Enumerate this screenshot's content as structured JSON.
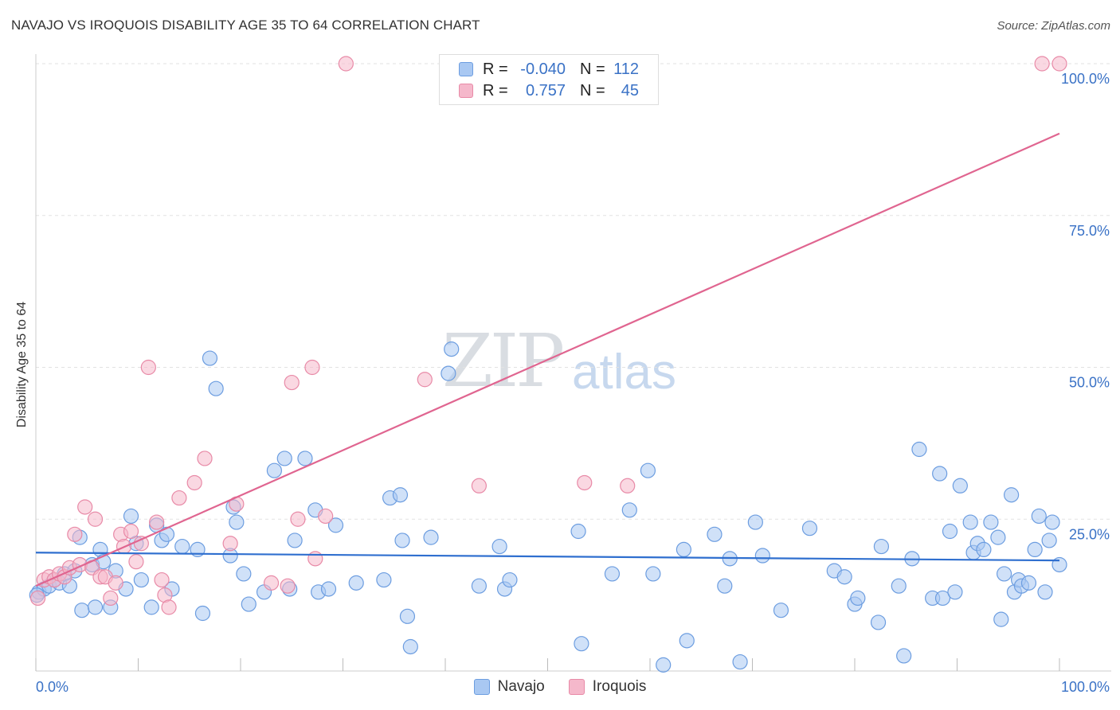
{
  "header": {
    "title": "NAVAJO VS IROQUOIS DISABILITY AGE 35 TO 64 CORRELATION CHART",
    "source": "Source: ZipAtlas.com"
  },
  "watermark": {
    "part1": "ZIP",
    "part2": "atlas"
  },
  "legend": {
    "rows": [
      {
        "r_label": "R =",
        "r_value": "-0.040",
        "n_label": "N =",
        "n_value": "112",
        "color": "#a9c8f2"
      },
      {
        "r_label": "R =",
        "r_value": "0.757",
        "n_label": "N =",
        "n_value": "45",
        "color": "#f5b8cb"
      }
    ]
  },
  "bottom_legend": [
    {
      "label": "Navajo",
      "color": "#a9c8f2"
    },
    {
      "label": "Iroquois",
      "color": "#f5b8cb"
    }
  ],
  "chart_data": {
    "type": "scatter",
    "title": "NAVAJO VS IROQUOIS DISABILITY AGE 35 TO 64 CORRELATION CHART",
    "xlabel": "",
    "ylabel": "Disability Age 35 to 64",
    "xlim": [
      0,
      100
    ],
    "ylim": [
      0,
      100
    ],
    "x_tick_labels": [
      "0.0%",
      "100.0%"
    ],
    "y_tick_labels": [
      "25.0%",
      "50.0%",
      "75.0%",
      "100.0%"
    ],
    "y_ticks": [
      25,
      50,
      75,
      100
    ],
    "grid": true,
    "colors": {
      "navajo_fill": "#a9c8f2",
      "navajo_stroke": "#6c9de0",
      "navajo_line": "#2f6fcf",
      "iroquois_fill": "#f5b8cb",
      "iroquois_stroke": "#e88aa7",
      "iroquois_line": "#e06590",
      "tick_label": "#3a72c6"
    },
    "series": [
      {
        "name": "Navajo",
        "trendline": {
          "x": [
            0,
            100
          ],
          "y": [
            19.5,
            18.2
          ]
        },
        "points": [
          [
            0.3,
            13.0
          ],
          [
            0.8,
            13.5
          ],
          [
            1.3,
            14.0
          ],
          [
            1.8,
            15.0
          ],
          [
            2.3,
            14.5
          ],
          [
            2.8,
            16.0
          ],
          [
            3.3,
            14.0
          ],
          [
            3.8,
            16.5
          ],
          [
            4.3,
            22.0
          ],
          [
            4.5,
            10.0
          ],
          [
            5.5,
            17.5
          ],
          [
            5.8,
            10.5
          ],
          [
            6.3,
            20.0
          ],
          [
            6.6,
            18.0
          ],
          [
            7.3,
            10.5
          ],
          [
            7.8,
            16.5
          ],
          [
            8.8,
            13.5
          ],
          [
            9.3,
            25.5
          ],
          [
            9.8,
            21.0
          ],
          [
            10.3,
            15.0
          ],
          [
            11.3,
            10.5
          ],
          [
            11.8,
            24.0
          ],
          [
            12.3,
            21.5
          ],
          [
            12.8,
            22.5
          ],
          [
            13.3,
            13.5
          ],
          [
            14.3,
            20.5
          ],
          [
            15.8,
            20.0
          ],
          [
            16.3,
            9.5
          ],
          [
            17.0,
            51.5
          ],
          [
            17.6,
            46.5
          ],
          [
            19.0,
            19.0
          ],
          [
            19.3,
            27.0
          ],
          [
            19.6,
            24.5
          ],
          [
            20.3,
            16.0
          ],
          [
            20.8,
            11.0
          ],
          [
            22.3,
            13.0
          ],
          [
            23.3,
            33.0
          ],
          [
            24.3,
            35.0
          ],
          [
            24.8,
            13.5
          ],
          [
            25.3,
            21.5
          ],
          [
            26.3,
            35.0
          ],
          [
            27.3,
            26.5
          ],
          [
            27.6,
            13.0
          ],
          [
            28.6,
            13.5
          ],
          [
            29.3,
            24.0
          ],
          [
            31.3,
            14.5
          ],
          [
            34.0,
            15.0
          ],
          [
            34.6,
            28.5
          ],
          [
            35.6,
            29.0
          ],
          [
            35.8,
            21.5
          ],
          [
            36.3,
            9.0
          ],
          [
            36.6,
            4.0
          ],
          [
            38.6,
            22.0
          ],
          [
            40.3,
            49.0
          ],
          [
            40.6,
            53.0
          ],
          [
            43.3,
            14.0
          ],
          [
            45.3,
            20.5
          ],
          [
            45.8,
            13.5
          ],
          [
            46.3,
            15.0
          ],
          [
            53.0,
            23.0
          ],
          [
            53.3,
            4.5
          ],
          [
            56.3,
            16.0
          ],
          [
            58.0,
            26.5
          ],
          [
            59.8,
            33.0
          ],
          [
            60.3,
            16.0
          ],
          [
            61.3,
            1.0
          ],
          [
            63.3,
            20.0
          ],
          [
            63.6,
            5.0
          ],
          [
            66.3,
            22.5
          ],
          [
            67.3,
            14.0
          ],
          [
            67.8,
            18.5
          ],
          [
            68.8,
            1.5
          ],
          [
            70.3,
            24.5
          ],
          [
            71.0,
            19.0
          ],
          [
            72.8,
            10.0
          ],
          [
            75.6,
            23.5
          ],
          [
            78.0,
            16.5
          ],
          [
            79.0,
            15.5
          ],
          [
            80.0,
            11.0
          ],
          [
            80.3,
            12.0
          ],
          [
            82.3,
            8.0
          ],
          [
            82.6,
            20.5
          ],
          [
            84.3,
            14.0
          ],
          [
            84.8,
            2.5
          ],
          [
            85.6,
            18.5
          ],
          [
            86.3,
            36.5
          ],
          [
            87.6,
            12.0
          ],
          [
            88.3,
            32.5
          ],
          [
            88.6,
            12.0
          ],
          [
            89.3,
            23.0
          ],
          [
            89.8,
            13.0
          ],
          [
            90.3,
            30.5
          ],
          [
            91.3,
            24.5
          ],
          [
            91.6,
            19.5
          ],
          [
            92.0,
            21.0
          ],
          [
            92.6,
            20.0
          ],
          [
            93.3,
            24.5
          ],
          [
            94.0,
            22.0
          ],
          [
            94.3,
            8.5
          ],
          [
            94.6,
            16.0
          ],
          [
            95.3,
            29.0
          ],
          [
            95.6,
            13.0
          ],
          [
            96.0,
            15.0
          ],
          [
            96.3,
            14.0
          ],
          [
            97.0,
            14.5
          ],
          [
            97.6,
            20.0
          ],
          [
            98.0,
            25.5
          ],
          [
            98.6,
            13.0
          ],
          [
            99.0,
            21.5
          ],
          [
            99.3,
            24.5
          ],
          [
            100.0,
            17.5
          ],
          [
            0.1,
            12.5
          ]
        ]
      },
      {
        "name": "Iroquois",
        "trendline": {
          "x": [
            0,
            100
          ],
          "y": [
            14.0,
            88.5
          ]
        },
        "points": [
          [
            0.2,
            12.0
          ],
          [
            0.8,
            15.0
          ],
          [
            1.3,
            15.5
          ],
          [
            1.8,
            15.0
          ],
          [
            2.3,
            16.0
          ],
          [
            2.8,
            15.5
          ],
          [
            3.3,
            17.0
          ],
          [
            3.8,
            22.5
          ],
          [
            4.3,
            17.5
          ],
          [
            4.8,
            27.0
          ],
          [
            5.5,
            17.0
          ],
          [
            5.8,
            25.0
          ],
          [
            6.3,
            15.5
          ],
          [
            6.8,
            15.5
          ],
          [
            7.3,
            12.0
          ],
          [
            7.8,
            14.5
          ],
          [
            8.3,
            22.5
          ],
          [
            8.6,
            20.5
          ],
          [
            9.3,
            23.0
          ],
          [
            9.8,
            18.0
          ],
          [
            10.3,
            21.0
          ],
          [
            11.0,
            50.0
          ],
          [
            11.8,
            24.5
          ],
          [
            12.3,
            15.0
          ],
          [
            12.6,
            12.5
          ],
          [
            13.0,
            10.5
          ],
          [
            14.0,
            28.5
          ],
          [
            15.5,
            31.0
          ],
          [
            16.5,
            35.0
          ],
          [
            19.0,
            21.0
          ],
          [
            19.6,
            27.5
          ],
          [
            23.0,
            14.5
          ],
          [
            25.0,
            47.5
          ],
          [
            25.6,
            25.0
          ],
          [
            27.0,
            50.0
          ],
          [
            27.3,
            18.5
          ],
          [
            28.3,
            25.5
          ],
          [
            30.3,
            100.0
          ],
          [
            38.0,
            48.0
          ],
          [
            43.3,
            30.5
          ],
          [
            53.6,
            31.0
          ],
          [
            57.8,
            30.5
          ],
          [
            98.3,
            100.0
          ],
          [
            100.0,
            100.0
          ],
          [
            24.6,
            14.0
          ]
        ]
      }
    ]
  }
}
